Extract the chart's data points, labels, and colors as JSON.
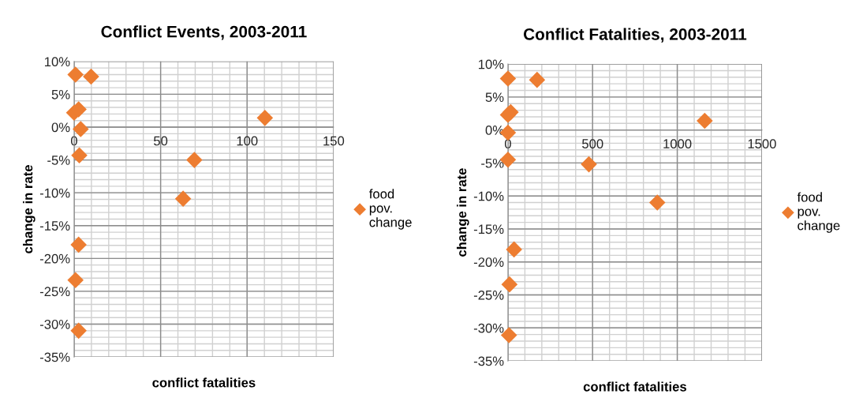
{
  "chart_data": [
    {
      "type": "scatter",
      "title": "Conflict Events, 2003-2011",
      "xlabel": "conflict fatalities",
      "ylabel": "change in rate",
      "series": [
        {
          "name": "food pov. change",
          "color": "#ed7d31",
          "x": [
            0.8,
            9.8,
            0,
            2.6,
            3.8,
            3,
            69.5,
            63,
            2.6,
            0.8,
            2.6,
            110.3
          ],
          "values": [
            8.0,
            7.7,
            2.2,
            2.7,
            -0.3,
            -4.3,
            -5.0,
            -10.9,
            -17.9,
            -23.3,
            -31.0,
            1.4
          ]
        }
      ],
      "xlim": [
        0,
        150
      ],
      "xticks": [
        0,
        50,
        100,
        150
      ],
      "ylim": [
        -35,
        10
      ],
      "yticks": [
        {
          "value": -35,
          "label": "-35%"
        },
        {
          "value": -30,
          "label": "-30%"
        },
        {
          "value": -25,
          "label": "-25%"
        },
        {
          "value": -20,
          "label": "-20%"
        },
        {
          "value": -15,
          "label": "-15%"
        },
        {
          "value": -10,
          "label": "-10%"
        },
        {
          "value": -5,
          "label": "-5%"
        },
        {
          "value": 0,
          "label": "0%"
        },
        {
          "value": 5,
          "label": "5%"
        },
        {
          "value": 10,
          "label": "10%"
        }
      ],
      "grid": true,
      "legend": "right",
      "marker": "diamond"
    },
    {
      "type": "scatter",
      "title": "Conflict Fatalities, 2003-2011",
      "xlabel": "conflict fatalities",
      "ylabel": "change in rate",
      "series": [
        {
          "name": "food pov. change",
          "color": "#ed7d31",
          "x": [
            0,
            172,
            16,
            0,
            0,
            0,
            478,
            882,
            36,
            9,
            6,
            1162
          ],
          "values": [
            7.8,
            7.6,
            2.7,
            2.3,
            -0.4,
            -4.5,
            -5.2,
            -11.0,
            -18.1,
            -23.4,
            -31.1,
            1.4
          ]
        }
      ],
      "xlim": [
        0,
        1500
      ],
      "xticks": [
        0,
        500,
        1000,
        1500
      ],
      "ylim": [
        -35,
        10
      ],
      "yticks": [
        {
          "value": -35,
          "label": "-35%"
        },
        {
          "value": -30,
          "label": "-30%"
        },
        {
          "value": -25,
          "label": "-25%"
        },
        {
          "value": -20,
          "label": "-20%"
        },
        {
          "value": -15,
          "label": "-15%"
        },
        {
          "value": -10,
          "label": "-10%"
        },
        {
          "value": -5,
          "label": "-5%"
        },
        {
          "value": 0,
          "label": "0%"
        },
        {
          "value": 5,
          "label": "5%"
        },
        {
          "value": 10,
          "label": "10%"
        }
      ],
      "grid": true,
      "legend": "right",
      "marker": "diamond"
    }
  ]
}
